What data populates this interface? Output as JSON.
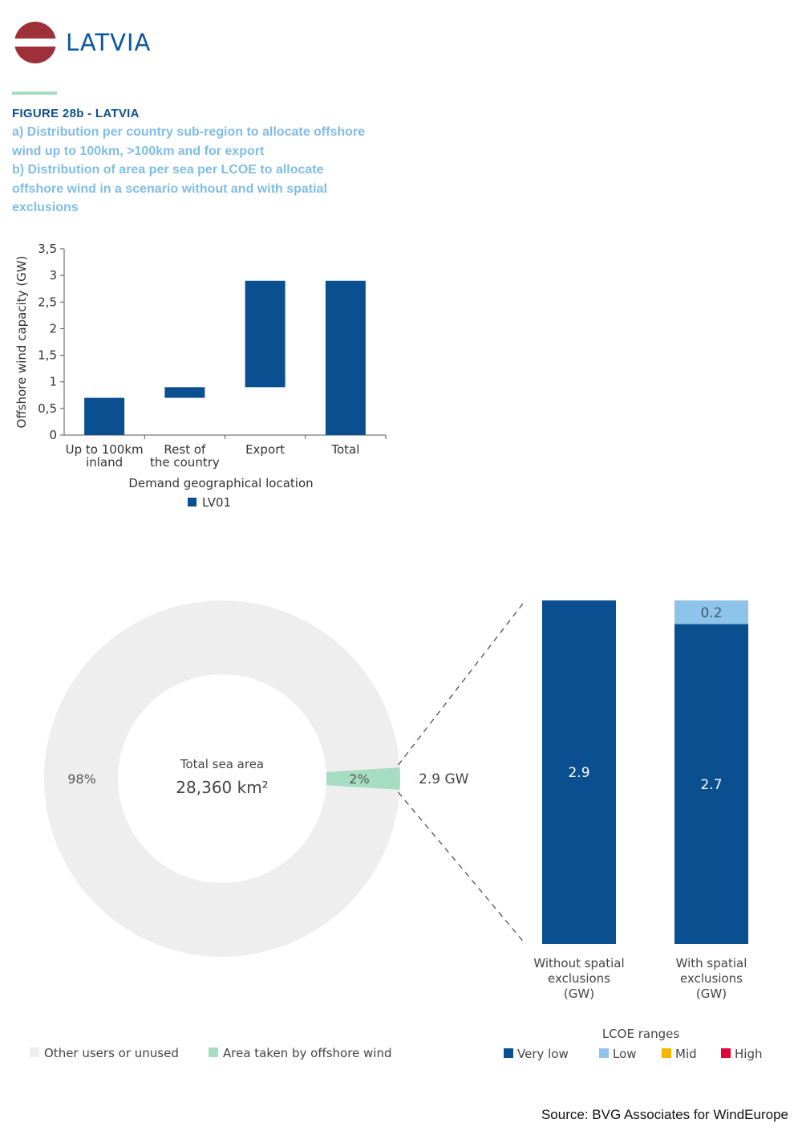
{
  "header": {
    "country": "LATVIA",
    "flag_colors": [
      "#9e3039",
      "#ffffff",
      "#9e3039"
    ]
  },
  "figure": {
    "label": "FIGURE 28b - LATVIA",
    "description_lines": [
      "a) Distribution per country sub-region to allocate offshore",
      "wind up to 100km, >100km and for export",
      "b) Distribution of area per sea per LCOE to allocate",
      "offshore wind in a scenario without and with spatial",
      "exclusions"
    ]
  },
  "chart_data": [
    {
      "type": "bar",
      "subtype": "floating-waterfall",
      "categories": [
        [
          "Up to 100km",
          "inland"
        ],
        [
          "Rest of",
          "the country"
        ],
        [
          "Export"
        ],
        [
          "Total"
        ]
      ],
      "series": [
        {
          "name": "LV01",
          "color": "#0a4f8f",
          "ranges": [
            [
              0,
              0.7
            ],
            [
              0.7,
              0.9
            ],
            [
              0.9,
              2.9
            ],
            [
              0,
              2.9
            ]
          ]
        }
      ],
      "xlabel": "Demand geographical location",
      "ylabel": "Offshore wind capacity (GW)",
      "ylim": [
        0,
        3.5
      ],
      "yticks": [
        "0",
        "0,5",
        "1",
        "1,5",
        "2",
        "2,5",
        "3",
        "3,5"
      ],
      "grid": false,
      "legend": "bottom"
    },
    {
      "type": "pie",
      "subtype": "donut",
      "center_label": "Total sea area",
      "center_value": "28,360 km²",
      "slices": [
        {
          "name": "Other users or unused",
          "value": 98,
          "label": "98%",
          "color": "#eeeeee"
        },
        {
          "name": "Area taken by offshore wind",
          "value": 2,
          "label": "2%",
          "color": "#a6dcc2"
        }
      ],
      "callout": "2.9 GW",
      "legend": "bottom-left"
    },
    {
      "type": "bar",
      "subtype": "stacked",
      "categories": [
        [
          "Without spatial",
          "exclusions",
          "(GW)"
        ],
        [
          "With spatial",
          "exclusions",
          "(GW)"
        ]
      ],
      "series": [
        {
          "name": "Very low",
          "color": "#0a4f8f",
          "values": [
            2.9,
            2.7
          ],
          "labels": [
            "2.9",
            "2.7"
          ]
        },
        {
          "name": "Low",
          "color": "#8ec3ea",
          "values": [
            0,
            0.2
          ],
          "labels": [
            "",
            "0.2"
          ]
        },
        {
          "name": "Mid",
          "color": "#f7b500",
          "values": [
            0,
            0
          ],
          "labels": [
            "",
            ""
          ]
        },
        {
          "name": "High",
          "color": "#e4003b",
          "values": [
            0,
            0
          ],
          "labels": [
            "",
            ""
          ]
        }
      ],
      "legend_title": "LCOE ranges",
      "legend": "bottom-right"
    }
  ],
  "source": "Source: BVG Associates for WindEurope"
}
